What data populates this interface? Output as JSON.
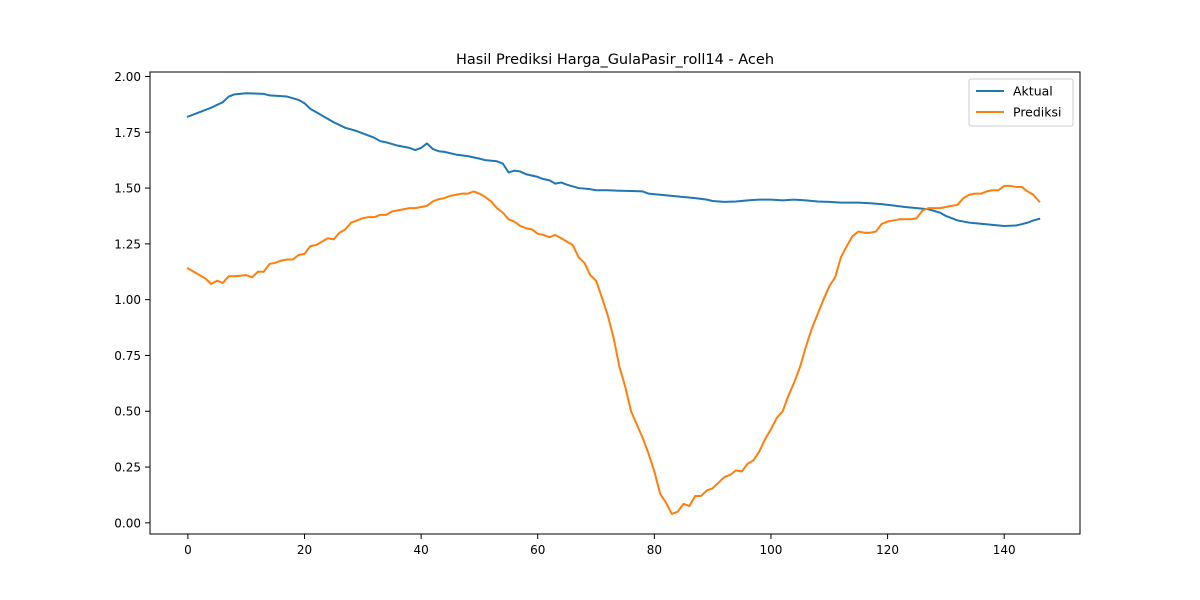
{
  "chart_data": {
    "type": "line",
    "title": "Hasil Prediksi Harga_GulaPasir_roll14 - Aceh",
    "xlabel": "",
    "ylabel": "",
    "xlim": [
      -6.5,
      153
    ],
    "ylim": [
      -0.05,
      2.02
    ],
    "xticks": [
      0,
      20,
      40,
      60,
      80,
      100,
      120,
      140
    ],
    "xtick_labels": [
      "0",
      "20",
      "40",
      "60",
      "80",
      "100",
      "120",
      "140"
    ],
    "yticks": [
      0.0,
      0.25,
      0.5,
      0.75,
      1.0,
      1.25,
      1.5,
      1.75,
      2.0
    ],
    "ytick_labels": [
      "0.00",
      "0.25",
      "0.50",
      "0.75",
      "1.00",
      "1.25",
      "1.50",
      "1.75",
      "2.00"
    ],
    "grid": false,
    "legend_position": "top-right",
    "series": [
      {
        "name": "Aktual",
        "color": "#1f77b4",
        "points": [
          [
            0,
            1.82
          ],
          [
            2,
            1.84
          ],
          [
            4,
            1.86
          ],
          [
            6,
            1.885
          ],
          [
            7,
            1.91
          ],
          [
            8,
            1.92
          ],
          [
            10,
            1.925
          ],
          [
            13,
            1.922
          ],
          [
            14,
            1.915
          ],
          [
            17,
            1.91
          ],
          [
            19,
            1.895
          ],
          [
            20,
            1.88
          ],
          [
            21,
            1.855
          ],
          [
            22,
            1.84
          ],
          [
            25,
            1.795
          ],
          [
            27,
            1.77
          ],
          [
            29,
            1.755
          ],
          [
            32,
            1.725
          ],
          [
            33,
            1.71
          ],
          [
            34,
            1.705
          ],
          [
            36,
            1.69
          ],
          [
            38,
            1.68
          ],
          [
            39,
            1.67
          ],
          [
            40,
            1.68
          ],
          [
            41,
            1.7
          ],
          [
            42,
            1.675
          ],
          [
            43,
            1.665
          ],
          [
            44,
            1.662
          ],
          [
            46,
            1.65
          ],
          [
            48,
            1.643
          ],
          [
            50,
            1.632
          ],
          [
            51,
            1.625
          ],
          [
            53,
            1.62
          ],
          [
            54,
            1.61
          ],
          [
            55,
            1.57
          ],
          [
            56,
            1.578
          ],
          [
            57,
            1.574
          ],
          [
            58,
            1.562
          ],
          [
            60,
            1.55
          ],
          [
            61,
            1.54
          ],
          [
            62,
            1.535
          ],
          [
            63,
            1.52
          ],
          [
            64,
            1.525
          ],
          [
            65,
            1.515
          ],
          [
            67,
            1.5
          ],
          [
            69,
            1.495
          ],
          [
            70,
            1.49
          ],
          [
            72,
            1.49
          ],
          [
            74,
            1.488
          ],
          [
            76,
            1.487
          ],
          [
            78,
            1.485
          ],
          [
            79,
            1.475
          ],
          [
            81,
            1.47
          ],
          [
            83,
            1.465
          ],
          [
            85,
            1.46
          ],
          [
            87,
            1.455
          ],
          [
            89,
            1.448
          ],
          [
            90,
            1.442
          ],
          [
            92,
            1.438
          ],
          [
            94,
            1.44
          ],
          [
            96,
            1.445
          ],
          [
            98,
            1.448
          ],
          [
            100,
            1.448
          ],
          [
            102,
            1.445
          ],
          [
            104,
            1.448
          ],
          [
            106,
            1.445
          ],
          [
            108,
            1.44
          ],
          [
            110,
            1.438
          ],
          [
            112,
            1.435
          ],
          [
            115,
            1.435
          ],
          [
            117,
            1.432
          ],
          [
            119,
            1.428
          ],
          [
            121,
            1.422
          ],
          [
            123,
            1.415
          ],
          [
            125,
            1.41
          ],
          [
            127,
            1.405
          ],
          [
            129,
            1.39
          ],
          [
            130,
            1.375
          ],
          [
            132,
            1.355
          ],
          [
            134,
            1.345
          ],
          [
            136,
            1.34
          ],
          [
            138,
            1.335
          ],
          [
            140,
            1.33
          ],
          [
            142,
            1.332
          ],
          [
            143,
            1.338
          ],
          [
            144,
            1.345
          ],
          [
            145,
            1.355
          ],
          [
            146,
            1.362
          ]
        ]
      },
      {
        "name": "Prediksi",
        "color": "#ff7f0e",
        "points": [
          [
            0,
            1.14
          ],
          [
            1,
            1.125
          ],
          [
            2,
            1.11
          ],
          [
            3,
            1.095
          ],
          [
            4,
            1.07
          ],
          [
            5,
            1.085
          ],
          [
            6,
            1.075
          ],
          [
            7,
            1.105
          ],
          [
            8,
            1.105
          ],
          [
            10,
            1.11
          ],
          [
            11,
            1.1
          ],
          [
            12,
            1.125
          ],
          [
            13,
            1.125
          ],
          [
            14,
            1.16
          ],
          [
            15,
            1.165
          ],
          [
            16,
            1.175
          ],
          [
            17,
            1.18
          ],
          [
            18,
            1.18
          ],
          [
            19,
            1.2
          ],
          [
            20,
            1.205
          ],
          [
            21,
            1.24
          ],
          [
            22,
            1.245
          ],
          [
            23,
            1.26
          ],
          [
            24,
            1.275
          ],
          [
            25,
            1.27
          ],
          [
            26,
            1.3
          ],
          [
            27,
            1.315
          ],
          [
            28,
            1.345
          ],
          [
            29,
            1.355
          ],
          [
            30,
            1.365
          ],
          [
            31,
            1.37
          ],
          [
            32,
            1.37
          ],
          [
            33,
            1.38
          ],
          [
            34,
            1.38
          ],
          [
            35,
            1.395
          ],
          [
            36,
            1.4
          ],
          [
            37,
            1.405
          ],
          [
            38,
            1.41
          ],
          [
            39,
            1.41
          ],
          [
            40,
            1.415
          ],
          [
            41,
            1.42
          ],
          [
            42,
            1.44
          ],
          [
            43,
            1.45
          ],
          [
            44,
            1.455
          ],
          [
            45,
            1.465
          ],
          [
            46,
            1.47
          ],
          [
            47,
            1.475
          ],
          [
            48,
            1.475
          ],
          [
            49,
            1.485
          ],
          [
            50,
            1.475
          ],
          [
            51,
            1.46
          ],
          [
            52,
            1.44
          ],
          [
            53,
            1.41
          ],
          [
            54,
            1.39
          ],
          [
            55,
            1.36
          ],
          [
            56,
            1.35
          ],
          [
            57,
            1.33
          ],
          [
            58,
            1.32
          ],
          [
            59,
            1.315
          ],
          [
            60,
            1.295
          ],
          [
            61,
            1.29
          ],
          [
            62,
            1.28
          ],
          [
            63,
            1.29
          ],
          [
            64,
            1.275
          ],
          [
            65,
            1.26
          ],
          [
            66,
            1.245
          ],
          [
            67,
            1.19
          ],
          [
            68,
            1.165
          ],
          [
            69,
            1.11
          ],
          [
            70,
            1.085
          ],
          [
            71,
            1.01
          ],
          [
            72,
            0.93
          ],
          [
            73,
            0.83
          ],
          [
            74,
            0.7
          ],
          [
            75,
            0.61
          ],
          [
            76,
            0.5
          ],
          [
            77,
            0.44
          ],
          [
            78,
            0.38
          ],
          [
            79,
            0.31
          ],
          [
            80,
            0.23
          ],
          [
            81,
            0.13
          ],
          [
            82,
            0.09
          ],
          [
            83,
            0.04
          ],
          [
            84,
            0.05
          ],
          [
            85,
            0.085
          ],
          [
            86,
            0.075
          ],
          [
            87,
            0.12
          ],
          [
            88,
            0.12
          ],
          [
            89,
            0.145
          ],
          [
            90,
            0.155
          ],
          [
            91,
            0.18
          ],
          [
            92,
            0.205
          ],
          [
            93,
            0.215
          ],
          [
            94,
            0.235
          ],
          [
            95,
            0.23
          ],
          [
            96,
            0.265
          ],
          [
            97,
            0.28
          ],
          [
            98,
            0.32
          ],
          [
            99,
            0.375
          ],
          [
            100,
            0.42
          ],
          [
            101,
            0.47
          ],
          [
            102,
            0.5
          ],
          [
            103,
            0.57
          ],
          [
            104,
            0.63
          ],
          [
            105,
            0.7
          ],
          [
            106,
            0.79
          ],
          [
            107,
            0.87
          ],
          [
            108,
            0.935
          ],
          [
            109,
            1.0
          ],
          [
            110,
            1.06
          ],
          [
            111,
            1.1
          ],
          [
            112,
            1.19
          ],
          [
            113,
            1.24
          ],
          [
            114,
            1.285
          ],
          [
            115,
            1.305
          ],
          [
            116,
            1.3
          ],
          [
            117,
            1.3
          ],
          [
            118,
            1.305
          ],
          [
            119,
            1.34
          ],
          [
            120,
            1.35
          ],
          [
            121,
            1.355
          ],
          [
            122,
            1.36
          ],
          [
            123,
            1.36
          ],
          [
            124,
            1.36
          ],
          [
            125,
            1.365
          ],
          [
            126,
            1.4
          ],
          [
            127,
            1.41
          ],
          [
            128,
            1.41
          ],
          [
            129,
            1.41
          ],
          [
            130,
            1.415
          ],
          [
            131,
            1.42
          ],
          [
            132,
            1.425
          ],
          [
            133,
            1.455
          ],
          [
            134,
            1.47
          ],
          [
            135,
            1.475
          ],
          [
            136,
            1.475
          ],
          [
            137,
            1.485
          ],
          [
            138,
            1.49
          ],
          [
            139,
            1.49
          ],
          [
            140,
            1.51
          ],
          [
            141,
            1.51
          ],
          [
            142,
            1.505
          ],
          [
            143,
            1.505
          ],
          [
            144,
            1.485
          ],
          [
            145,
            1.47
          ],
          [
            146,
            1.44
          ]
        ]
      }
    ]
  }
}
